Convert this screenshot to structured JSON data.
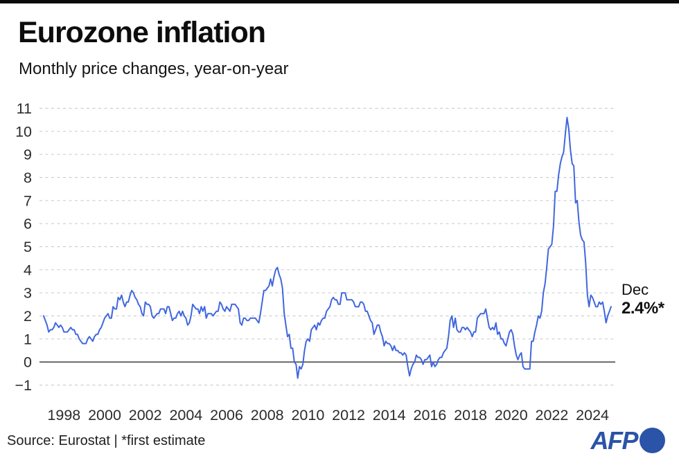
{
  "header": {
    "title": "Eurozone inflation",
    "subtitle": "Monthly price changes, year-on-year"
  },
  "chart_data": {
    "type": "line",
    "title": "Eurozone inflation",
    "subtitle": "Monthly price changes, year-on-year",
    "xlabel": "",
    "ylabel": "",
    "unit": "%",
    "ylim": [
      -1,
      11
    ],
    "y_ticks": [
      11,
      10,
      9,
      8,
      7,
      6,
      5,
      4,
      3,
      2,
      1,
      0,
      -1
    ],
    "x_ticks": [
      1998,
      2000,
      2002,
      2004,
      2006,
      2008,
      2010,
      2012,
      2014,
      2016,
      2018,
      2020,
      2022,
      2024
    ],
    "x_range_months": [
      "1997-01",
      "2024-12"
    ],
    "grid": "horizontal-dashed",
    "zero_line": true,
    "colors": {
      "line": "#4066df",
      "grid": "#cdcdcd",
      "zero_line": "#4d4d4d",
      "tick_label": "#2b2b2b",
      "afp_blue": "#2b53a7"
    },
    "series": [
      {
        "name": "Eurozone HICP inflation, year-on-year %",
        "values_by_year": {
          "1997": [
            2.0,
            1.8,
            1.6,
            1.3,
            1.4,
            1.4,
            1.5,
            1.7,
            1.6,
            1.5,
            1.6,
            1.5
          ],
          "1998": [
            1.3,
            1.3,
            1.3,
            1.4,
            1.5,
            1.4,
            1.4,
            1.2,
            1.2,
            1.0,
            0.9,
            0.8
          ],
          "1999": [
            0.8,
            0.8,
            1.0,
            1.1,
            1.0,
            0.9,
            1.1,
            1.2,
            1.2,
            1.4,
            1.5,
            1.7
          ],
          "2000": [
            1.9,
            2.0,
            2.1,
            1.9,
            1.9,
            2.4,
            2.3,
            2.3,
            2.8,
            2.7,
            2.9,
            2.6
          ],
          "2001": [
            2.4,
            2.6,
            2.6,
            2.9,
            3.1,
            3.0,
            2.8,
            2.7,
            2.5,
            2.4,
            2.1,
            2.0
          ],
          "2002": [
            2.6,
            2.5,
            2.5,
            2.4,
            2.0,
            1.9,
            2.0,
            2.1,
            2.1,
            2.3,
            2.3,
            2.3
          ],
          "2003": [
            2.1,
            2.4,
            2.4,
            2.1,
            1.8,
            1.9,
            1.9,
            2.1,
            2.2,
            2.0,
            2.2,
            2.0
          ],
          "2004": [
            1.9,
            1.6,
            1.7,
            2.0,
            2.5,
            2.4,
            2.3,
            2.3,
            2.1,
            2.4,
            2.2,
            2.4
          ],
          "2005": [
            1.9,
            2.1,
            2.1,
            2.1,
            2.0,
            2.1,
            2.2,
            2.2,
            2.6,
            2.5,
            2.3,
            2.2
          ],
          "2006": [
            2.4,
            2.3,
            2.2,
            2.5,
            2.5,
            2.5,
            2.4,
            2.3,
            1.7,
            1.6,
            1.9,
            1.9
          ],
          "2007": [
            1.8,
            1.8,
            1.9,
            1.9,
            1.9,
            1.9,
            1.8,
            1.7,
            2.1,
            2.6,
            3.1,
            3.1
          ],
          "2008": [
            3.2,
            3.3,
            3.6,
            3.3,
            3.7,
            4.0,
            4.1,
            3.8,
            3.6,
            3.2,
            2.1,
            1.6
          ],
          "2009": [
            1.1,
            1.2,
            0.6,
            0.6,
            0.0,
            -0.1,
            -0.7,
            -0.2,
            -0.3,
            -0.1,
            0.5,
            0.9
          ],
          "2010": [
            1.0,
            0.9,
            1.4,
            1.5,
            1.6,
            1.4,
            1.7,
            1.6,
            1.8,
            1.9,
            1.9,
            2.2
          ],
          "2011": [
            2.3,
            2.4,
            2.7,
            2.8,
            2.7,
            2.7,
            2.5,
            2.5,
            3.0,
            3.0,
            3.0,
            2.7
          ],
          "2012": [
            2.7,
            2.7,
            2.7,
            2.6,
            2.4,
            2.4,
            2.4,
            2.6,
            2.6,
            2.5,
            2.2,
            2.2
          ],
          "2013": [
            2.0,
            1.8,
            1.7,
            1.2,
            1.4,
            1.6,
            1.6,
            1.3,
            1.1,
            0.7,
            0.9,
            0.8
          ],
          "2014": [
            0.8,
            0.7,
            0.5,
            0.7,
            0.5,
            0.5,
            0.4,
            0.4,
            0.3,
            0.4,
            0.3,
            -0.2
          ],
          "2015": [
            -0.6,
            -0.3,
            -0.1,
            0.0,
            0.3,
            0.2,
            0.2,
            0.1,
            -0.1,
            0.1,
            0.1,
            0.2
          ],
          "2016": [
            0.3,
            -0.2,
            0.0,
            -0.2,
            -0.1,
            0.1,
            0.2,
            0.2,
            0.4,
            0.5,
            0.6,
            1.1
          ],
          "2017": [
            1.8,
            2.0,
            1.5,
            1.9,
            1.4,
            1.3,
            1.3,
            1.5,
            1.5,
            1.4,
            1.5,
            1.4
          ],
          "2018": [
            1.3,
            1.1,
            1.3,
            1.3,
            1.9,
            2.0,
            2.1,
            2.1,
            2.1,
            2.3,
            1.9,
            1.5
          ],
          "2019": [
            1.4,
            1.5,
            1.4,
            1.7,
            1.2,
            1.3,
            1.0,
            1.0,
            0.8,
            0.7,
            1.0,
            1.3
          ],
          "2020": [
            1.4,
            1.2,
            0.7,
            0.3,
            0.1,
            0.3,
            0.4,
            -0.2,
            -0.3,
            -0.3,
            -0.3,
            -0.3
          ],
          "2021": [
            0.9,
            0.9,
            1.3,
            1.6,
            2.0,
            1.9,
            2.2,
            3.0,
            3.4,
            4.1,
            4.9,
            5.0
          ],
          "2022": [
            5.1,
            5.9,
            7.4,
            7.4,
            8.1,
            8.6,
            8.9,
            9.1,
            9.9,
            10.6,
            10.1,
            9.2
          ],
          "2023": [
            8.6,
            8.5,
            6.9,
            7.0,
            6.1,
            5.5,
            5.3,
            5.2,
            4.3,
            2.9,
            2.4,
            2.9
          ],
          "2024": [
            2.8,
            2.6,
            2.4,
            2.4,
            2.6,
            2.5,
            2.6,
            2.2,
            1.7,
            2.0,
            2.2,
            2.4
          ]
        }
      }
    ],
    "annotation": {
      "line1": "Dec",
      "line2": "2.4%*",
      "month": "2024-12",
      "value": 2.4
    },
    "legend": null
  },
  "footer": {
    "source": "Source: Eurostat | *first estimate",
    "afp_label": "AFP"
  }
}
